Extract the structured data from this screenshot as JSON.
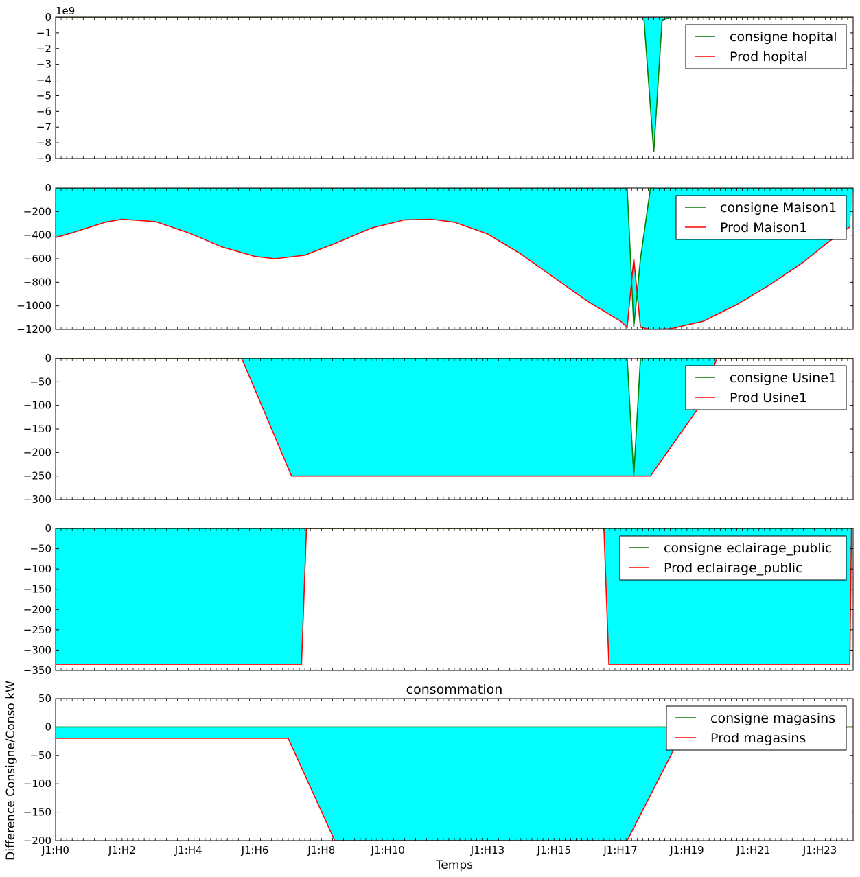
{
  "figure": {
    "ylabel": "Difference Consigne/Conso kW",
    "xlabel": "Temps",
    "x_tick_labels": [
      "J1:H0",
      "J1:H2",
      "J1:H4",
      "J1:H6",
      "J1:H8",
      "J1:H10",
      "J1:H13",
      "J1:H15",
      "J1:H17",
      "J1:H19",
      "J1:H21",
      "J1:H23"
    ]
  },
  "colors": {
    "fill": "#00ffff",
    "consigne": "#008000",
    "prod": "#ff0000"
  },
  "chart_data": [
    {
      "type": "area",
      "title": "",
      "offset_label": "1e9",
      "ylim": [
        -9,
        0
      ],
      "yticks": [
        0,
        -1,
        -2,
        -3,
        -4,
        -5,
        -6,
        -7,
        -8,
        -9
      ],
      "legend_position": "top-right",
      "series": [
        {
          "name": "consigne hopital",
          "color": "#008000",
          "points": [
            [
              0,
              0
            ],
            [
              17.7,
              0
            ],
            [
              18.0,
              -8.6
            ],
            [
              18.25,
              -0.2
            ],
            [
              18.5,
              0
            ],
            [
              24,
              0
            ]
          ]
        },
        {
          "name": "Prod hopital",
          "color": "#ff0000",
          "points": [
            [
              0,
              0
            ],
            [
              24,
              0
            ]
          ]
        }
      ]
    },
    {
      "type": "area",
      "title": "",
      "ylim": [
        -1200,
        0
      ],
      "yticks": [
        0,
        -200,
        -400,
        -600,
        -800,
        -1000,
        -1200
      ],
      "legend_position": "top-right",
      "series": [
        {
          "name": "consigne Maison1",
          "color": "#008000",
          "points": [
            [
              0,
              0
            ],
            [
              17.2,
              0
            ],
            [
              17.4,
              -1180
            ],
            [
              17.6,
              -600
            ],
            [
              17.9,
              0
            ],
            [
              24,
              0
            ]
          ]
        },
        {
          "name": "Prod Maison1",
          "color": "#ff0000",
          "points": [
            [
              0,
              -420
            ],
            [
              0.5,
              -380
            ],
            [
              1.5,
              -290
            ],
            [
              2,
              -265
            ],
            [
              3,
              -285
            ],
            [
              4,
              -380
            ],
            [
              5,
              -500
            ],
            [
              6,
              -580
            ],
            [
              6.6,
              -600
            ],
            [
              7.5,
              -570
            ],
            [
              8.5,
              -460
            ],
            [
              9.5,
              -340
            ],
            [
              10.5,
              -270
            ],
            [
              11.3,
              -265
            ],
            [
              12,
              -290
            ],
            [
              13,
              -390
            ],
            [
              14,
              -560
            ],
            [
              15,
              -760
            ],
            [
              16,
              -960
            ],
            [
              17,
              -1130
            ],
            [
              17.2,
              -1180
            ],
            [
              17.4,
              -600
            ],
            [
              17.6,
              -1180
            ],
            [
              17.9,
              -1200
            ],
            [
              18.5,
              -1195
            ],
            [
              19.5,
              -1130
            ],
            [
              20.5,
              -990
            ],
            [
              21.5,
              -820
            ],
            [
              22.5,
              -630
            ],
            [
              23.2,
              -470
            ],
            [
              23.9,
              -330
            ]
          ]
        }
      ]
    },
    {
      "type": "area",
      "title": "",
      "ylim": [
        -300,
        0
      ],
      "yticks": [
        0,
        -50,
        -100,
        -150,
        -200,
        -250,
        -300
      ],
      "legend_position": "top-right",
      "series": [
        {
          "name": "consigne Usine1",
          "color": "#008000",
          "points": [
            [
              0,
              0
            ],
            [
              17.2,
              0
            ],
            [
              17.4,
              -250
            ],
            [
              17.6,
              0
            ],
            [
              24,
              0
            ]
          ]
        },
        {
          "name": "Prod Usine1",
          "color": "#ff0000",
          "points": [
            [
              0,
              0
            ],
            [
              5.6,
              0
            ],
            [
              7.1,
              -250
            ],
            [
              17.9,
              -250
            ],
            [
              19.4,
              -100
            ],
            [
              19.9,
              0
            ],
            [
              24,
              0
            ]
          ]
        }
      ]
    },
    {
      "type": "area",
      "title": "",
      "ylim": [
        -350,
        0
      ],
      "yticks": [
        0,
        -50,
        -100,
        -150,
        -200,
        -250,
        -300,
        -350
      ],
      "legend_position": "top-right",
      "series": [
        {
          "name": "consigne eclairage_public",
          "color": "#008000",
          "points": [
            [
              0,
              0
            ],
            [
              24,
              0
            ]
          ]
        },
        {
          "name": "Prod eclairage_public",
          "color": "#ff0000",
          "points": [
            [
              0,
              -335
            ],
            [
              7.4,
              -335
            ],
            [
              7.55,
              0
            ],
            [
              16.5,
              0
            ],
            [
              16.65,
              -335
            ],
            [
              23.9,
              -335
            ],
            [
              23.95,
              0
            ]
          ]
        }
      ]
    },
    {
      "type": "area",
      "title": "consommation",
      "ylim": [
        -200,
        50
      ],
      "yticks": [
        50,
        0,
        -50,
        -100,
        -150,
        -200
      ],
      "legend_position": "top-right",
      "series": [
        {
          "name": "consigne magasins",
          "color": "#008000",
          "points": [
            [
              0,
              0
            ],
            [
              24,
              0
            ]
          ]
        },
        {
          "name": "Prod magasins",
          "color": "#ff0000",
          "points": [
            [
              0,
              -20
            ],
            [
              7,
              -20
            ],
            [
              8.4,
              -200
            ],
            [
              17.2,
              -200
            ],
            [
              18.6,
              -40
            ],
            [
              20,
              0
            ],
            [
              24,
              0
            ]
          ]
        }
      ]
    }
  ]
}
